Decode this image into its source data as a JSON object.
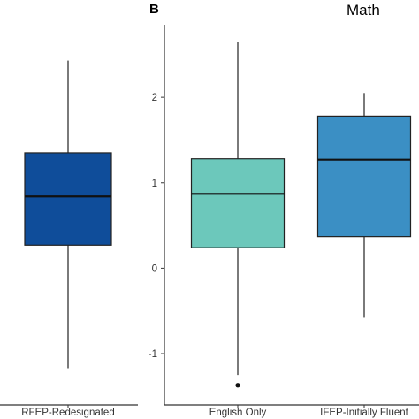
{
  "panel_label": "B",
  "title": "Math",
  "chart_data": [
    {
      "type": "box",
      "categories": [
        "RFEP-Redesignated"
      ],
      "boxes": [
        {
          "category": "RFEP-Redesignated",
          "whisker_low": -1.17,
          "q1": 0.27,
          "median": 0.84,
          "q3": 1.35,
          "whisker_high": 2.43,
          "outliers": [],
          "color": "#0f4d9a"
        }
      ],
      "ylim": [
        -1.6,
        2.85
      ],
      "y_axis_visible": false
    },
    {
      "type": "box",
      "categories": [
        "English Only",
        "IFEP-Initially Fluent"
      ],
      "boxes": [
        {
          "category": "English Only",
          "whisker_low": -1.25,
          "q1": 0.24,
          "median": 0.87,
          "q3": 1.28,
          "whisker_high": 2.65,
          "outliers": [
            -1.37
          ],
          "color": "#6cc8bb"
        },
        {
          "category": "IFEP-Initially Fluent",
          "whisker_low": -0.58,
          "q1": 0.37,
          "median": 1.27,
          "q3": 1.78,
          "whisker_high": 2.05,
          "outliers": [],
          "color": "#3b8fc4"
        }
      ],
      "y_ticks": [
        "-1",
        "0",
        "1",
        "2"
      ],
      "y_tick_values": [
        -1,
        0,
        1,
        2
      ],
      "ylim": [
        -1.6,
        2.85
      ],
      "title": "Math"
    }
  ]
}
